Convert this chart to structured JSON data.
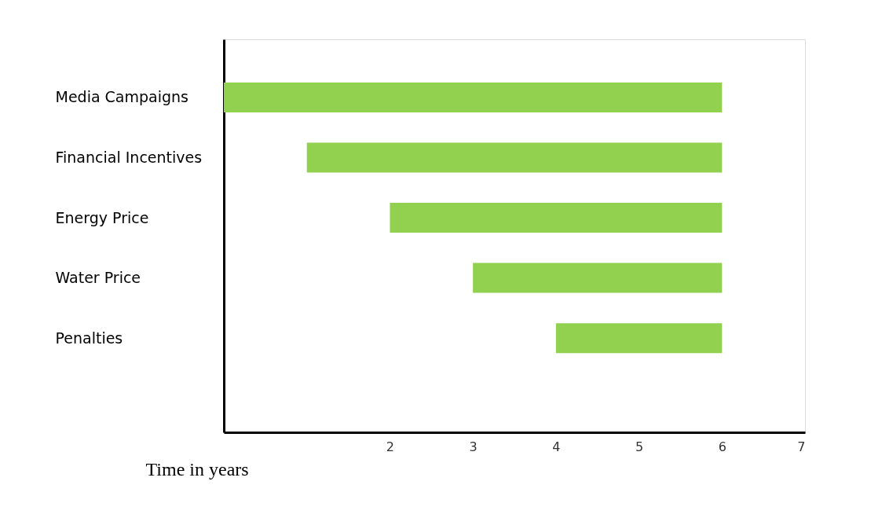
{
  "chart_data": {
    "type": "bar",
    "orientation": "horizontal",
    "categories": [
      "Media Campaigns",
      "Financial Incentives",
      "Energy Price",
      "Water Price",
      "Penalties"
    ],
    "base": [
      0,
      1,
      2,
      3,
      4
    ],
    "values": [
      6,
      5,
      4,
      3,
      2
    ],
    "color": "#92d050",
    "xlabel": "Time in years",
    "xlim": [
      0,
      7
    ],
    "xticks": [
      2,
      3,
      4,
      5,
      6,
      7
    ],
    "grid": false
  }
}
